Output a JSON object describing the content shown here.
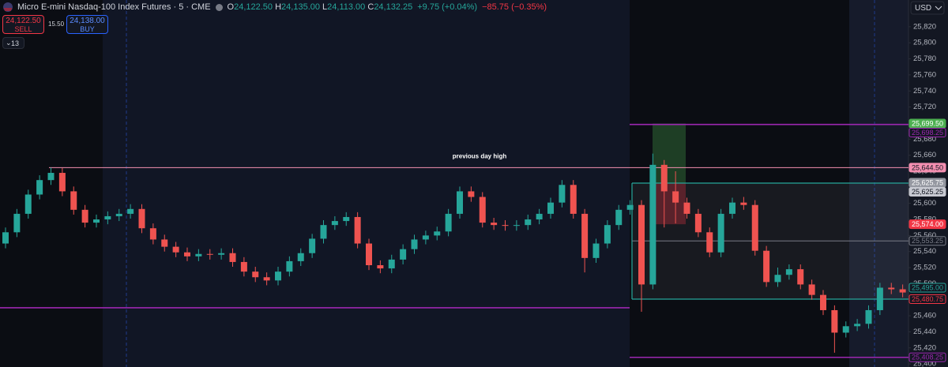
{
  "header": {
    "symbol": "Micro E-mini Nasdaq-100 Index Futures · 5 · CME",
    "ohlc": [
      {
        "key": "O",
        "value": "24,122.50"
      },
      {
        "key": "H",
        "value": "24,135.00"
      },
      {
        "key": "L",
        "value": "24,113.00"
      },
      {
        "key": "C",
        "value": "24,132.25"
      }
    ],
    "change": "+9.75 (+0.04%)",
    "day_change": "−85.75 (−0.35%)"
  },
  "trade": {
    "sell_price": "24,122.50",
    "sell": "SELL",
    "spread": "15.50",
    "buy_price": "24,138.00",
    "buy": "BUY",
    "quantity": "13"
  },
  "currency": "USD",
  "chart_data": {
    "type": "candlestick",
    "annotation": "previous day high",
    "up_color": "#26a69a",
    "down_color": "#ef5350",
    "ylim": [
      25396.2,
      25853.3
    ],
    "yticks": [
      {
        "value": 25400,
        "label": "25,400"
      },
      {
        "value": 25420,
        "label": "25,420"
      },
      {
        "value": 25440,
        "label": "25,440"
      },
      {
        "value": 25460,
        "label": "25,460"
      },
      {
        "value": 25480,
        "label": "25,480"
      },
      {
        "value": 25500,
        "label": "25,500"
      },
      {
        "value": 25520,
        "label": "25,520"
      },
      {
        "value": 25540,
        "label": "25,540"
      },
      {
        "value": 25560,
        "label": "25,560"
      },
      {
        "value": 25580,
        "label": "25,580"
      },
      {
        "value": 25600,
        "label": "25,600"
      },
      {
        "value": 25620,
        "label": "25,620"
      },
      {
        "value": 25640,
        "label": "25,640"
      },
      {
        "value": 25660,
        "label": "25,660"
      },
      {
        "value": 25680,
        "label": "25,680"
      },
      {
        "value": 25700,
        "label": "25,700"
      },
      {
        "value": 25720,
        "label": "25,720"
      },
      {
        "value": 25740,
        "label": "25,740"
      },
      {
        "value": 25760,
        "label": "25,760"
      },
      {
        "value": 25780,
        "label": "25,780"
      },
      {
        "value": 25800,
        "label": "25,800"
      },
      {
        "value": 25820,
        "label": "25,820"
      }
    ],
    "open": [
      25550,
      25564,
      25587,
      25611,
      25629,
      25638,
      25615,
      25592,
      25576,
      25580,
      25584,
      25587,
      25593,
      25569,
      25555,
      25546,
      25539,
      25534,
      25537,
      25536,
      25538,
      25527,
      25515,
      25508,
      25504,
      25515,
      25528,
      25538,
      25556,
      25573,
      25578,
      25583,
      25550,
      25523,
      25519,
      25530,
      25543,
      25555,
      25560,
      25565,
      25587,
      25615,
      25608,
      25576,
      25573,
      25572,
      25573,
      25580,
      25587,
      25601,
      25623,
      25587,
      25532,
      25550,
      25573,
      25592,
      25598,
      25499,
      25648,
      25615,
      25601,
      25587,
      25564,
      25539,
      25587,
      25601,
      25598,
      25541,
      25502,
      25511,
      25518,
      25499,
      25486,
      25467,
      25439,
      25447,
      25450,
      25467,
      25495,
      25493
    ],
    "high": [
      25570,
      25593,
      25617,
      25635,
      25644.5,
      25644,
      25621,
      25598,
      25586,
      25590,
      25593,
      25599,
      25599,
      25575,
      25561,
      25552,
      25545,
      25543,
      25543,
      25544,
      25544,
      25533,
      25521,
      25514,
      25521,
      25534,
      25544,
      25562,
      25579,
      25584,
      25589,
      25589,
      25556,
      25529,
      25536,
      25549,
      25561,
      25566,
      25571,
      25593,
      25621,
      25621,
      25614,
      25582,
      25579,
      25579,
      25586,
      25593,
      25607,
      25629,
      25629,
      25593,
      25556,
      25579,
      25598,
      25604,
      25604,
      25662,
      25654,
      25640,
      25607,
      25593,
      25570,
      25593,
      25607,
      25608,
      25604,
      25547,
      25520,
      25524,
      25524,
      25505,
      25492,
      25473,
      25453,
      25456,
      25473,
      25501,
      25501,
      25499
    ],
    "low": [
      25544,
      25558,
      25581,
      25605,
      25623,
      25609,
      25586,
      25570,
      25570,
      25574,
      25578,
      25581,
      25563,
      25549,
      25540,
      25533,
      25528,
      25528,
      25530,
      25530,
      25521,
      25509,
      25502,
      25498,
      25498,
      25509,
      25522,
      25532,
      25550,
      25567,
      25572,
      25544,
      25517,
      25513,
      25513,
      25524,
      25537,
      25549,
      25554,
      25559,
      25581,
      25602,
      25570,
      25567,
      25566,
      25566,
      25567,
      25574,
      25581,
      25595,
      25581,
      25514,
      25526,
      25544,
      25567,
      25586,
      25465,
      25493,
      25570,
      25575,
      25581,
      25558,
      25533,
      25533,
      25581,
      25592,
      25535,
      25496,
      25496,
      25505,
      25493,
      25480,
      25461,
      25414,
      25433,
      25441,
      25444,
      25461,
      25487,
      25483
    ],
    "close": [
      25564,
      25587,
      25611,
      25629,
      25638,
      25615,
      25592,
      25576,
      25580,
      25584,
      25587,
      25593,
      25569,
      25555,
      25546,
      25539,
      25534,
      25537,
      25536,
      25538,
      25527,
      25515,
      25508,
      25504,
      25515,
      25528,
      25538,
      25556,
      25573,
      25578,
      25583,
      25550,
      25523,
      25519,
      25530,
      25543,
      25555,
      25560,
      25565,
      25587,
      25615,
      25608,
      25576,
      25573,
      25572,
      25573,
      25580,
      25587,
      25601,
      25623,
      25587,
      25532,
      25550,
      25573,
      25592,
      25598,
      25499,
      25648,
      25615,
      25601,
      25587,
      25564,
      25539,
      25587,
      25601,
      25598,
      25541,
      25502,
      25511,
      25518,
      25499,
      25486,
      25467,
      25439,
      25447,
      25450,
      25467,
      25495,
      25493,
      25489
    ],
    "price_labels": [
      {
        "value": 25699.5,
        "label": "25,699.50",
        "color": "#4caf50",
        "style": "fill"
      },
      {
        "value": 25698.25,
        "label": "25,698.25",
        "color": "#9c27b0",
        "style": "outline"
      },
      {
        "value": 25644.5,
        "label": "25,644.50",
        "color": "#f48fb1",
        "style": "fill"
      },
      {
        "value": 25625.75,
        "label": "25,625.75",
        "color": "#9598a1",
        "style": "fill"
      },
      {
        "value": 25625.25,
        "label": "25,625.25",
        "color": "#c7c9d1",
        "style": "fill"
      },
      {
        "value": 25574,
        "label": "25,574.00",
        "color": "#f23645",
        "style": "fill"
      },
      {
        "value": 25553.25,
        "label": "25,553.25",
        "color": "#787b86",
        "style": "outline"
      },
      {
        "value": 25495,
        "label": "25,495.00",
        "color": "#26a69a",
        "style": "outline"
      },
      {
        "value": 25480.75,
        "label": "25,480.75",
        "color": "#f23645",
        "style": "outline"
      },
      {
        "value": 25408.25,
        "label": "25,408.25",
        "color": "#9c27b0",
        "style": "outline"
      }
    ],
    "levels": [
      {
        "value": 25470,
        "color": "#9c27b0"
      }
    ]
  }
}
